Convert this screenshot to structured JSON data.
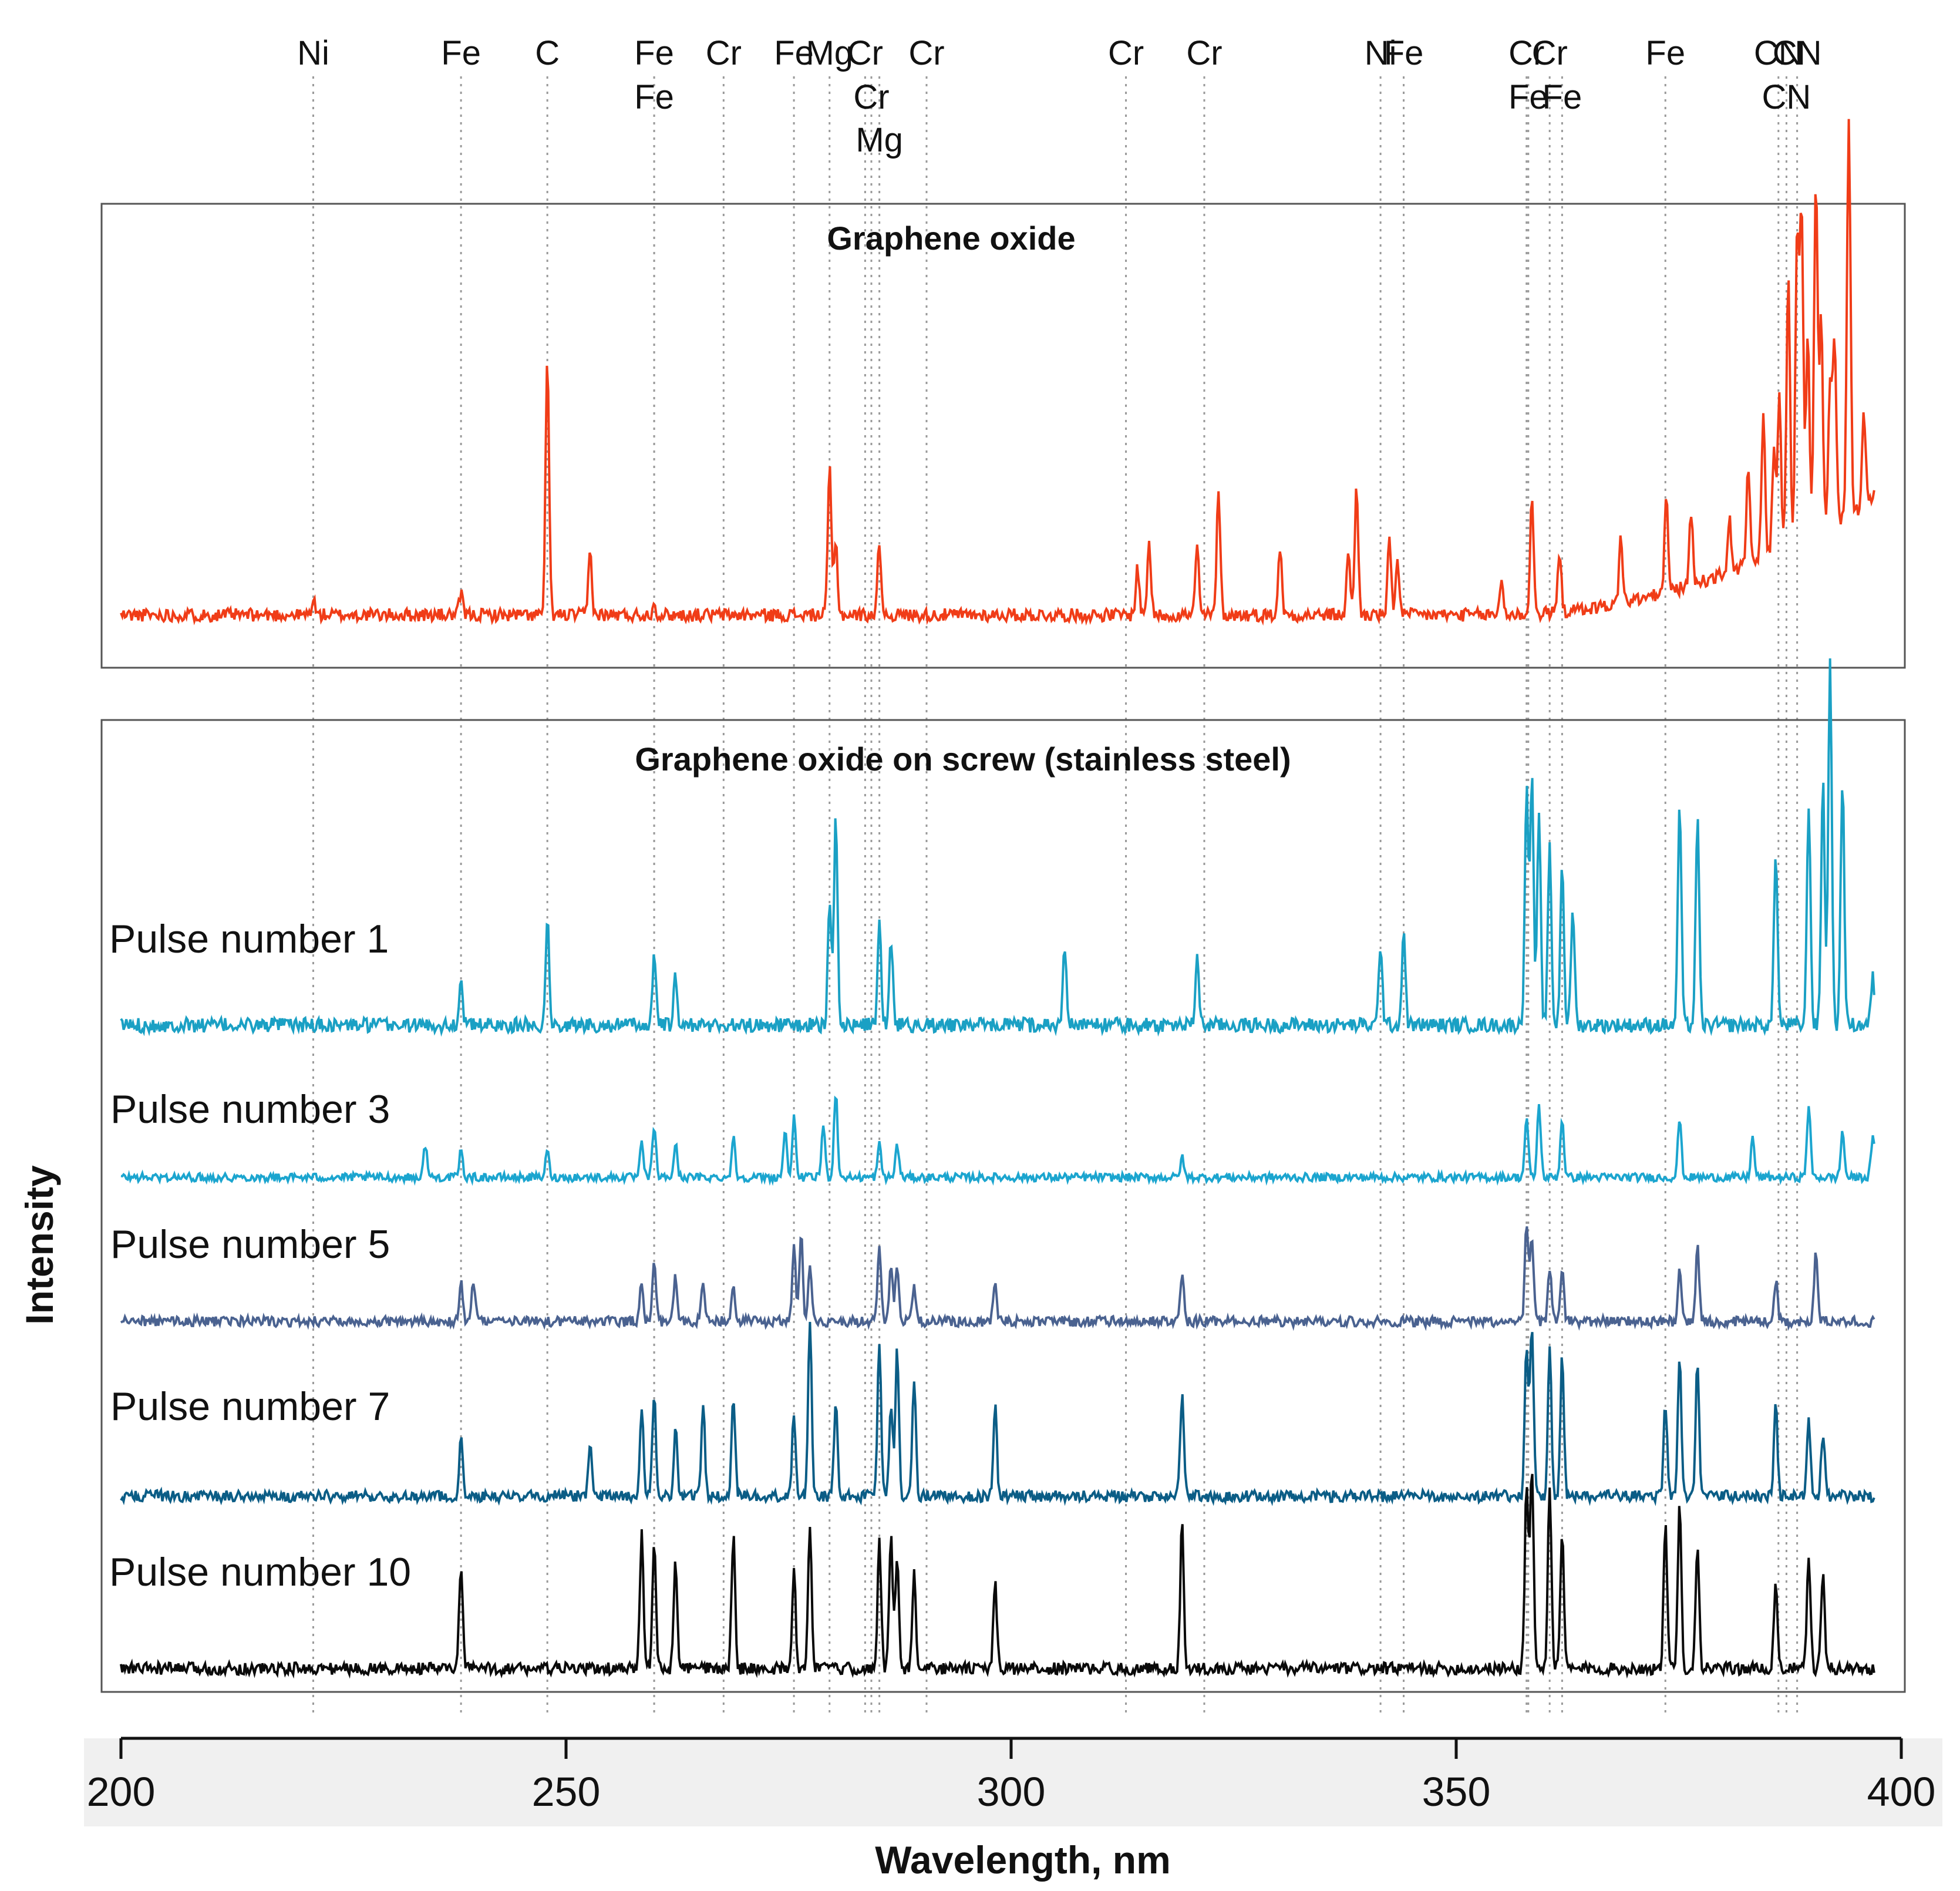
{
  "chart_data": {
    "type": "line",
    "xlabel": "Wavelength, nm",
    "ylabel": "Intensity",
    "xlim": [
      200,
      400
    ],
    "x_ticks": [
      "200",
      "250",
      "300",
      "350",
      "400"
    ],
    "element_lines": [
      {
        "element": "Ni",
        "wavelength": 221.6
      },
      {
        "element": "Fe",
        "wavelength": 238.2
      },
      {
        "element": "C",
        "wavelength": 247.9
      },
      {
        "element": "Fe",
        "wavelength": 259.9
      },
      {
        "element": "Cr",
        "wavelength": 267.7
      },
      {
        "element": "Fe",
        "wavelength": 275.6
      },
      {
        "element": "Fe",
        "wavelength": 259.9
      },
      {
        "element": "Mg",
        "wavelength": 279.6
      },
      {
        "element": "Cr",
        "wavelength": 283.6
      },
      {
        "element": "Cr",
        "wavelength": 284.3
      },
      {
        "element": "Mg",
        "wavelength": 285.2
      },
      {
        "element": "Cr",
        "wavelength": 290.5
      },
      {
        "element": "Cr",
        "wavelength": 312.9
      },
      {
        "element": "Cr",
        "wavelength": 321.7
      },
      {
        "element": "Ni",
        "wavelength": 341.5
      },
      {
        "element": "Fe",
        "wavelength": 344.1
      },
      {
        "element": "Cr",
        "wavelength": 357.9
      },
      {
        "element": "Cr",
        "wavelength": 360.5
      },
      {
        "element": "Fe",
        "wavelength": 358.1
      },
      {
        "element": "Fe",
        "wavelength": 361.9
      },
      {
        "element": "Fe",
        "wavelength": 373.5
      },
      {
        "element": "CN",
        "wavelength": 388.3
      },
      {
        "element": "CN",
        "wavelength": 387.1
      },
      {
        "element": "CN",
        "wavelength": 386.2
      }
    ],
    "panels": [
      {
        "title": "Graphene oxide",
        "series": [
          {
            "name": "Graphene oxide",
            "color": "#f03c17",
            "baseline": 0.03,
            "peaks": [
              [
                221.6,
                0.03
              ],
              [
                238.2,
                0.04
              ],
              [
                247.9,
                0.48
              ],
              [
                252.7,
                0.12
              ],
              [
                259.9,
                0.02
              ],
              [
                279.6,
                0.28
              ],
              [
                280.3,
                0.14
              ],
              [
                285.2,
                0.14
              ],
              [
                314.2,
                0.09
              ],
              [
                315.5,
                0.14
              ],
              [
                320.9,
                0.13
              ],
              [
                323.3,
                0.24
              ],
              [
                330.2,
                0.13
              ],
              [
                337.9,
                0.12
              ],
              [
                338.8,
                0.24
              ],
              [
                342.5,
                0.14
              ],
              [
                343.4,
                0.11
              ],
              [
                355.1,
                0.07
              ],
              [
                358.5,
                0.22
              ],
              [
                361.6,
                0.12
              ],
              [
                368.5,
                0.13
              ],
              [
                373.6,
                0.18
              ],
              [
                376.4,
                0.14
              ],
              [
                380.7,
                0.1
              ],
              [
                382.8,
                0.18
              ],
              [
                384.5,
                0.27
              ],
              [
                385.7,
                0.2
              ],
              [
                386.3,
                0.29
              ],
              [
                387.3,
                0.52
              ],
              [
                388.3,
                0.58
              ],
              [
                388.8,
                0.62
              ],
              [
                389.5,
                0.38
              ],
              [
                390.4,
                0.68
              ],
              [
                391.0,
                0.4
              ],
              [
                392.0,
                0.28
              ],
              [
                392.5,
                0.34
              ],
              [
                394.1,
                0.76
              ],
              [
                395.8,
                0.18
              ],
              [
                397.3,
                0.12
              ]
            ]
          }
        ]
      },
      {
        "title": "Graphene oxide on screw (stainless steel)",
        "series": [
          {
            "name": "Pulse number 1",
            "label": "Pulse number 1",
            "color": "#1aa0c4",
            "peaks": [
              [
                238.2,
                0.08
              ],
              [
                247.9,
                0.18
              ],
              [
                259.9,
                0.12
              ],
              [
                262.3,
                0.08
              ],
              [
                279.6,
                0.2
              ],
              [
                280.3,
                0.36
              ],
              [
                285.2,
                0.18
              ],
              [
                286.5,
                0.15
              ],
              [
                306.0,
                0.14
              ],
              [
                320.9,
                0.12
              ],
              [
                341.5,
                0.14
              ],
              [
                344.1,
                0.16
              ],
              [
                357.9,
                0.4
              ],
              [
                358.5,
                0.42
              ],
              [
                359.3,
                0.35
              ],
              [
                360.5,
                0.3
              ],
              [
                361.9,
                0.28
              ],
              [
                363.1,
                0.2
              ],
              [
                375.1,
                0.38
              ],
              [
                377.1,
                0.35
              ],
              [
                385.9,
                0.3
              ],
              [
                389.6,
                0.38
              ],
              [
                391.2,
                0.42
              ],
              [
                392.0,
                0.62
              ],
              [
                393.4,
                0.42
              ],
              [
                396.8,
                0.08
              ]
            ]
          },
          {
            "name": "Pulse number 3",
            "label": "Pulse number 3",
            "color": "#1ba5cf",
            "peaks": [
              [
                234.2,
                0.1
              ],
              [
                238.2,
                0.08
              ],
              [
                247.9,
                0.08
              ],
              [
                258.5,
                0.1
              ],
              [
                259.9,
                0.16
              ],
              [
                262.3,
                0.1
              ],
              [
                268.8,
                0.12
              ],
              [
                274.6,
                0.14
              ],
              [
                275.6,
                0.18
              ],
              [
                278.9,
                0.16
              ],
              [
                280.3,
                0.26
              ],
              [
                285.2,
                0.1
              ],
              [
                287.2,
                0.1
              ],
              [
                319.2,
                0.06
              ],
              [
                357.9,
                0.18
              ],
              [
                359.3,
                0.22
              ],
              [
                361.9,
                0.18
              ],
              [
                375.1,
                0.18
              ],
              [
                383.3,
                0.12
              ],
              [
                389.6,
                0.22
              ],
              [
                393.4,
                0.14
              ],
              [
                396.8,
                0.12
              ]
            ]
          },
          {
            "name": "Pulse number 5",
            "label": "Pulse number 5",
            "color": "#4a6290",
            "peaks": [
              [
                238.2,
                0.1
              ],
              [
                239.6,
                0.1
              ],
              [
                258.5,
                0.1
              ],
              [
                259.9,
                0.14
              ],
              [
                262.3,
                0.11
              ],
              [
                265.4,
                0.09
              ],
              [
                268.8,
                0.09
              ],
              [
                275.6,
                0.18
              ],
              [
                276.4,
                0.22
              ],
              [
                277.4,
                0.14
              ],
              [
                285.2,
                0.18
              ],
              [
                286.5,
                0.14
              ],
              [
                287.2,
                0.13
              ],
              [
                289.1,
                0.09
              ],
              [
                298.2,
                0.09
              ],
              [
                319.2,
                0.12
              ],
              [
                357.9,
                0.23
              ],
              [
                358.5,
                0.2
              ],
              [
                360.5,
                0.13
              ],
              [
                361.9,
                0.13
              ],
              [
                375.1,
                0.12
              ],
              [
                377.1,
                0.18
              ],
              [
                385.9,
                0.1
              ],
              [
                390.4,
                0.16
              ]
            ]
          },
          {
            "name": "Pulse number 7",
            "label": "Pulse number 7",
            "color": "#0b5d86",
            "peaks": [
              [
                238.2,
                0.12
              ],
              [
                252.7,
                0.12
              ],
              [
                258.5,
                0.2
              ],
              [
                259.9,
                0.22
              ],
              [
                262.3,
                0.15
              ],
              [
                265.4,
                0.2
              ],
              [
                268.8,
                0.22
              ],
              [
                275.6,
                0.18
              ],
              [
                277.4,
                0.38
              ],
              [
                280.3,
                0.2
              ],
              [
                285.2,
                0.34
              ],
              [
                286.5,
                0.2
              ],
              [
                287.2,
                0.32
              ],
              [
                289.1,
                0.25
              ],
              [
                298.2,
                0.2
              ],
              [
                319.2,
                0.22
              ],
              [
                357.9,
                0.32
              ],
              [
                358.5,
                0.38
              ],
              [
                360.5,
                0.32
              ],
              [
                361.9,
                0.3
              ],
              [
                373.5,
                0.2
              ],
              [
                375.1,
                0.3
              ],
              [
                377.1,
                0.3
              ],
              [
                385.9,
                0.2
              ],
              [
                389.6,
                0.16
              ],
              [
                391.2,
                0.14
              ]
            ]
          },
          {
            "name": "Pulse number 10",
            "label": "Pulse number 10",
            "color": "#0a0a0a",
            "peaks": [
              [
                238.2,
                0.22
              ],
              [
                258.5,
                0.28
              ],
              [
                259.9,
                0.26
              ],
              [
                262.3,
                0.22
              ],
              [
                268.8,
                0.28
              ],
              [
                275.6,
                0.2
              ],
              [
                277.4,
                0.3
              ],
              [
                285.2,
                0.26
              ],
              [
                286.5,
                0.28
              ],
              [
                287.2,
                0.24
              ],
              [
                289.1,
                0.2
              ],
              [
                298.2,
                0.18
              ],
              [
                319.2,
                0.3
              ],
              [
                357.9,
                0.38
              ],
              [
                358.5,
                0.42
              ],
              [
                360.5,
                0.38
              ],
              [
                361.9,
                0.28
              ],
              [
                373.5,
                0.3
              ],
              [
                375.1,
                0.34
              ],
              [
                377.1,
                0.26
              ],
              [
                385.9,
                0.18
              ],
              [
                389.6,
                0.24
              ],
              [
                391.2,
                0.2
              ]
            ]
          }
        ]
      }
    ]
  }
}
